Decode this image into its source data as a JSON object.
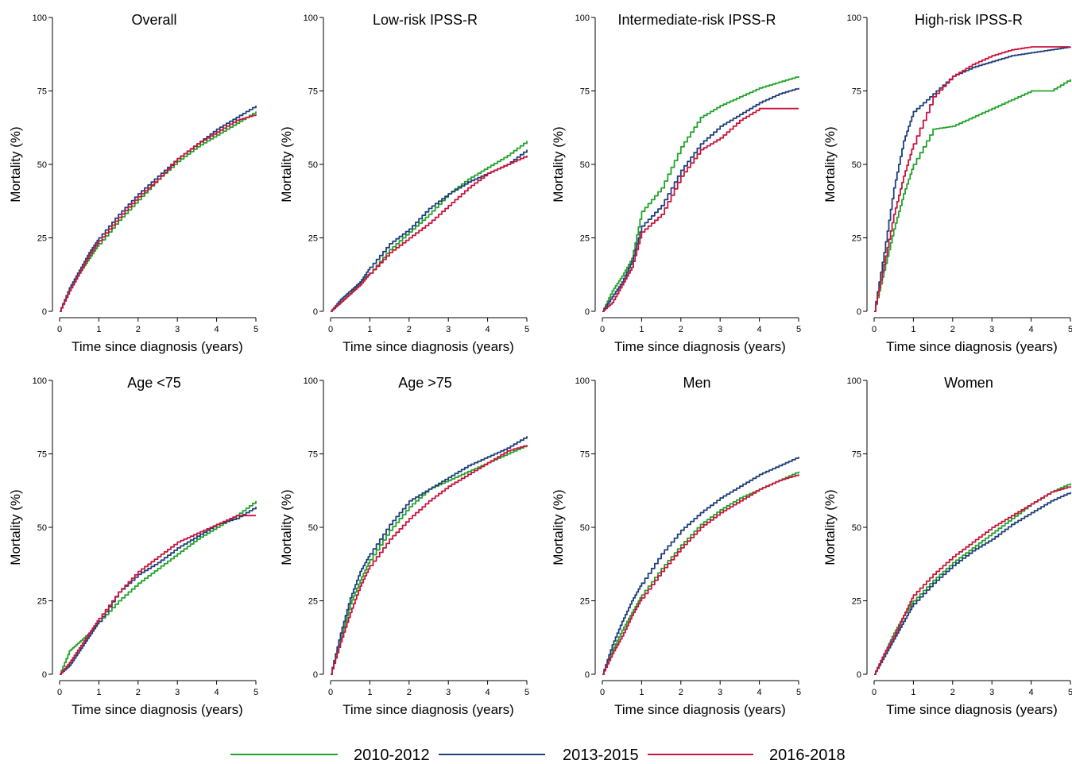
{
  "chart_data": {
    "type": "line",
    "layout": "2x4 small multiples",
    "xlabel": "Time since diagnosis (years)",
    "ylabel": "Mortality (%)",
    "xlim": [
      0,
      5
    ],
    "ylim": [
      0,
      100
    ],
    "xticks": [
      0,
      1,
      2,
      3,
      4,
      5
    ],
    "yticks": [
      0,
      25,
      50,
      75,
      100
    ],
    "grid": false,
    "legend_position": "bottom",
    "legend": [
      {
        "name": "2010-2012",
        "color": "#22a32a"
      },
      {
        "name": "2013-2015",
        "color": "#1f3f7a"
      },
      {
        "name": "2016-2018",
        "color": "#c8143c"
      }
    ],
    "x": [
      0,
      0.25,
      0.5,
      0.75,
      1,
      1.5,
      2,
      2.5,
      3,
      3.5,
      4,
      4.5,
      5
    ],
    "panels": [
      {
        "title": "Overall",
        "series": [
          {
            "name": "2010-2012",
            "values": [
              0,
              7,
              13,
              18,
              23,
              31,
              38,
              45,
              51,
              56,
              60,
              64,
              68
            ]
          },
          {
            "name": "2013-2015",
            "values": [
              0,
              8,
              14,
              20,
              25,
              33,
              40,
              46,
              52,
              57,
              62,
              66,
              70
            ]
          },
          {
            "name": "2016-2018",
            "values": [
              0,
              7,
              13,
              19,
              24,
              32,
              39,
              45,
              52,
              57,
              61,
              65,
              67
            ]
          }
        ]
      },
      {
        "title": "Low-risk IPSS-R",
        "series": [
          {
            "name": "2010-2012",
            "values": [
              0,
              3,
              6,
              10,
              13,
              21,
              27,
              33,
              40,
              45,
              49,
              53,
              58
            ]
          },
          {
            "name": "2013-2015",
            "values": [
              0,
              4,
              7,
              10,
              15,
              23,
              28,
              35,
              40,
              44,
              47,
              50,
              55
            ]
          },
          {
            "name": "2016-2018",
            "values": [
              0,
              3,
              6,
              9,
              13,
              20,
              25,
              30,
              36,
              42,
              47,
              50,
              53
            ]
          }
        ]
      },
      {
        "title": "Intermediate-risk IPSS-R",
        "series": [
          {
            "name": "2010-2012",
            "values": [
              0,
              7,
              12,
              18,
              34,
              42,
              56,
              66,
              70,
              73,
              76,
              78,
              80
            ]
          },
          {
            "name": "2013-2015",
            "values": [
              0,
              5,
              10,
              17,
              29,
              36,
              48,
              57,
              63,
              67,
              71,
              74,
              76
            ]
          },
          {
            "name": "2016-2018",
            "values": [
              0,
              3,
              9,
              15,
              27,
              33,
              46,
              55,
              59,
              65,
              69,
              69,
              69
            ]
          }
        ]
      },
      {
        "title": "High-risk IPSS-R",
        "series": [
          {
            "name": "2010-2012",
            "values": [
              0,
              14,
              28,
              40,
              50,
              62,
              63,
              66,
              69,
              72,
              75,
              75,
              79
            ]
          },
          {
            "name": "2013-2015",
            "values": [
              0,
              20,
              42,
              58,
              68,
              74,
              80,
              83,
              85,
              87,
              88,
              89,
              90
            ]
          },
          {
            "name": "2016-2018",
            "values": [
              0,
              16,
              33,
              46,
              57,
              73,
              80,
              84,
              87,
              89,
              90,
              90,
              90
            ]
          }
        ]
      },
      {
        "title": "Age <75",
        "series": [
          {
            "name": "2010-2012",
            "values": [
              0,
              8,
              11,
              14,
              18,
              25,
              31,
              36,
              41,
              46,
              50,
              54,
              59
            ]
          },
          {
            "name": "2013-2015",
            "values": [
              0,
              3,
              8,
              13,
              18,
              28,
              34,
              38,
              43,
              47,
              51,
              53,
              57
            ]
          },
          {
            "name": "2016-2018",
            "values": [
              0,
              4,
              9,
              14,
              19,
              28,
              35,
              40,
              45,
              48,
              51,
              54,
              54
            ]
          }
        ]
      },
      {
        "title": "Age >75",
        "series": [
          {
            "name": "2010-2012",
            "values": [
              0,
              12,
              24,
              32,
              39,
              49,
              57,
              63,
              66,
              69,
              72,
              75,
              78
            ]
          },
          {
            "name": "2013-2015",
            "values": [
              0,
              14,
              26,
              35,
              41,
              51,
              59,
              63,
              67,
              71,
              74,
              77,
              81
            ]
          },
          {
            "name": "2016-2018",
            "values": [
              0,
              11,
              21,
              30,
              37,
              46,
              53,
              59,
              64,
              68,
              72,
              76,
              78
            ]
          }
        ]
      },
      {
        "title": "Men",
        "series": [
          {
            "name": "2010-2012",
            "values": [
              0,
              8,
              15,
              21,
              27,
              36,
              44,
              51,
              56,
              60,
              63,
              66,
              69
            ]
          },
          {
            "name": "2013-2015",
            "values": [
              0,
              10,
              18,
              25,
              31,
              41,
              49,
              55,
              60,
              64,
              68,
              71,
              74
            ]
          },
          {
            "name": "2016-2018",
            "values": [
              0,
              7,
              13,
              20,
              26,
              35,
              43,
              50,
              55,
              59,
              63,
              66,
              68
            ]
          }
        ]
      },
      {
        "title": "Women",
        "series": [
          {
            "name": "2010-2012",
            "values": [
              0,
              7,
              14,
              20,
              25,
              32,
              38,
              43,
              48,
              53,
              58,
              62,
              65
            ]
          },
          {
            "name": "2013-2015",
            "values": [
              0,
              6,
              12,
              18,
              24,
              31,
              37,
              42,
              46,
              51,
              55,
              59,
              62
            ]
          },
          {
            "name": "2016-2018",
            "values": [
              0,
              7,
              13,
              20,
              27,
              34,
              40,
              45,
              50,
              54,
              58,
              62,
              64
            ]
          }
        ]
      }
    ]
  }
}
